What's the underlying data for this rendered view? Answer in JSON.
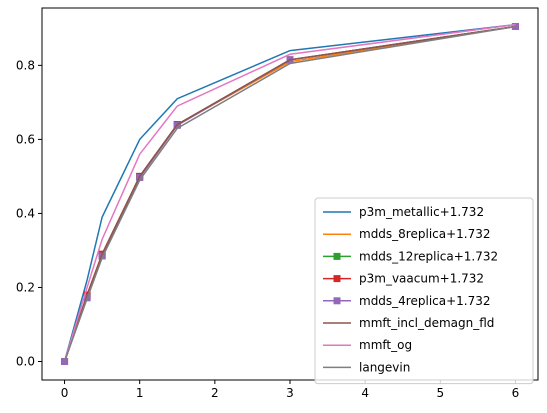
{
  "chart_data": {
    "type": "line",
    "title": "",
    "xlabel": "",
    "ylabel": "",
    "xlim": [
      -0.3,
      6.3
    ],
    "ylim": [
      -0.05,
      0.955
    ],
    "x_ticks": [
      0,
      1,
      2,
      3,
      4,
      5,
      6
    ],
    "y_ticks": [
      0.0,
      0.2,
      0.4,
      0.6,
      0.8
    ],
    "grid": false,
    "legend_position": "lower-right",
    "series": [
      {
        "name": "p3m_metallic+1.732",
        "color": "#1f77b4",
        "marker": "none",
        "x": [
          0,
          0.3,
          0.5,
          1,
          1.5,
          3,
          6
        ],
        "y": [
          0.0,
          0.22,
          0.39,
          0.6,
          0.71,
          0.84,
          0.91
        ]
      },
      {
        "name": "mdds_8replica+1.732",
        "color": "#ff7f0e",
        "marker": "none",
        "x": [
          0,
          0.3,
          0.5,
          1,
          1.5,
          3,
          6
        ],
        "y": [
          0.0,
          0.18,
          0.29,
          0.5,
          0.64,
          0.81,
          0.905
        ]
      },
      {
        "name": "mdds_12replica+1.732",
        "color": "#2ca02c",
        "marker": "square",
        "x": [
          0,
          0.3,
          0.5,
          1,
          1.5,
          3,
          6
        ],
        "y": [
          0.0,
          0.175,
          0.285,
          0.5,
          0.64,
          0.815,
          0.905
        ]
      },
      {
        "name": "p3m_vaacum+1.732",
        "color": "#d62728",
        "marker": "square",
        "x": [
          0,
          0.3,
          0.5,
          1,
          1.5,
          3,
          6
        ],
        "y": [
          0.0,
          0.18,
          0.29,
          0.5,
          0.64,
          0.815,
          0.905
        ]
      },
      {
        "name": "mdds_4replica+1.732",
        "color": "#9467bd",
        "marker": "square",
        "x": [
          0,
          0.3,
          0.5,
          1,
          1.5,
          3,
          6
        ],
        "y": [
          0.0,
          0.172,
          0.285,
          0.497,
          0.638,
          0.815,
          0.905
        ]
      },
      {
        "name": "mmft_incl_demagn_fld",
        "color": "#8c564b",
        "marker": "none",
        "x": [
          0,
          0.3,
          0.5,
          1,
          1.5,
          3,
          6
        ],
        "y": [
          0.0,
          0.178,
          0.29,
          0.5,
          0.64,
          0.815,
          0.905
        ]
      },
      {
        "name": "mmft_og",
        "color": "#e377c2",
        "marker": "none",
        "x": [
          0,
          0.3,
          0.5,
          1,
          1.5,
          3,
          6
        ],
        "y": [
          0.0,
          0.2,
          0.33,
          0.56,
          0.69,
          0.83,
          0.91
        ]
      },
      {
        "name": "langevin",
        "color": "#7f7f7f",
        "marker": "none",
        "x": [
          0,
          0.3,
          0.5,
          1,
          1.5,
          3,
          6
        ],
        "y": [
          0.0,
          0.17,
          0.28,
          0.49,
          0.63,
          0.805,
          0.905
        ]
      }
    ]
  }
}
